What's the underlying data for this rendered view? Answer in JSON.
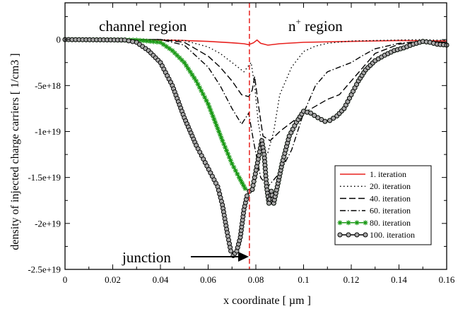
{
  "chart_data": {
    "type": "line",
    "xlabel": "x coordinate  [ µm ]",
    "ylabel": "density of injected charge carriers  [ 1/cm3 ]",
    "xlim": [
      0,
      0.16
    ],
    "ylim": [
      -2.5e+19,
      4e+18
    ],
    "x_ticks": [
      0,
      0.02,
      0.04,
      0.06,
      0.08,
      0.1,
      0.12,
      0.14,
      0.16
    ],
    "x_tick_labels": [
      "0",
      "0.02",
      "0.04",
      "0.06",
      "0.08",
      "0.1",
      "0.12",
      "0.14",
      "0.16"
    ],
    "y_ticks": [
      0,
      -5e+18,
      -1e+19,
      -1.5e+19,
      -2e+19,
      -2.5e+19
    ],
    "y_tick_labels": [
      "0",
      "-5e+18",
      "-1e+19",
      "-1.5e+19",
      "-2e+19",
      "-2.5e+19"
    ],
    "grid": false,
    "legend_position": "lower-right",
    "annotations": {
      "channel_region": "channel region",
      "n_region": "n",
      "n_region_sup": "+",
      "n_region_rest": " region",
      "junction": "junction",
      "junction_x": 0.0773
    },
    "series": [
      {
        "name": "1. iteration",
        "color": "#e8221f",
        "style": "solid",
        "marker": "none",
        "x": [
          0,
          0.02,
          0.04,
          0.05,
          0.06,
          0.07,
          0.075,
          0.077,
          0.079,
          0.0805,
          0.082,
          0.085,
          0.09,
          0.1,
          0.12,
          0.14,
          0.16
        ],
        "y": [
          0,
          0,
          -5e+16,
          -1e+17,
          -2e+17,
          -3.5e+17,
          -4.5e+17,
          -5.5e+17,
          -3.5e+17,
          -5e+16,
          -4e+17,
          -6e+17,
          -4.5e+17,
          -3e+17,
          -2e+17,
          -1e+17,
          -1.5e+17
        ]
      },
      {
        "name": "20. iteration",
        "color": "#000000",
        "style": "dotted",
        "marker": "none",
        "x": [
          0,
          0.04,
          0.05,
          0.06,
          0.065,
          0.07,
          0.075,
          0.078,
          0.0795,
          0.081,
          0.083,
          0.085,
          0.0875,
          0.09,
          0.095,
          0.1,
          0.105,
          0.11,
          0.12,
          0.13,
          0.14,
          0.15,
          0.16
        ],
        "y": [
          0,
          0,
          -1e+17,
          -8e+17,
          -1.5e+18,
          -2.5e+18,
          -3.5e+18,
          -2.5e+18,
          -5e+18,
          -9e+18,
          -1.2e+19,
          -1.23e+19,
          -1e+19,
          -6e+18,
          -3e+18,
          -1.3e+18,
          -7e+17,
          -4e+17,
          -1.5e+17,
          -1e+17,
          -5e+16,
          0,
          -1e+17
        ]
      },
      {
        "name": "40. iteration",
        "color": "#000000",
        "style": "dashed",
        "marker": "none",
        "x": [
          0,
          0.04,
          0.05,
          0.06,
          0.065,
          0.07,
          0.074,
          0.077,
          0.0785,
          0.0795,
          0.081,
          0.083,
          0.086,
          0.09,
          0.1,
          0.11,
          0.115,
          0.12,
          0.125,
          0.13,
          0.14,
          0.15,
          0.16
        ],
        "y": [
          0,
          0,
          -3e+17,
          -1.8e+18,
          -3e+18,
          -4.5e+18,
          -6e+18,
          -6.2e+18,
          -5.5e+18,
          -4e+18,
          -7e+18,
          -1.05e+19,
          -1.1e+19,
          -1e+19,
          -8e+18,
          -6.5e+18,
          -6e+18,
          -4.5e+18,
          -3e+18,
          -1.5e+18,
          -5e+17,
          -2e+17,
          -3e+17
        ]
      },
      {
        "name": "60. iteration",
        "color": "#000000",
        "style": "dashdot",
        "marker": "none",
        "x": [
          0,
          0.04,
          0.05,
          0.06,
          0.065,
          0.07,
          0.074,
          0.077,
          0.079,
          0.082,
          0.085,
          0.09,
          0.095,
          0.1,
          0.105,
          0.11,
          0.115,
          0.12,
          0.125,
          0.13,
          0.14,
          0.15,
          0.16
        ],
        "y": [
          0,
          0,
          -6e+17,
          -3e+18,
          -5e+18,
          -7.5e+18,
          -9.2e+18,
          -8e+18,
          -1.1e+19,
          -1.5e+19,
          -1.6e+19,
          -1.45e+19,
          -1.2e+19,
          -8e+18,
          -5e+18,
          -3.5e+18,
          -3e+18,
          -2.5e+18,
          -1.7e+18,
          -1e+18,
          -4e+17,
          -2e+17,
          -3e+17
        ]
      },
      {
        "name": "80. iteration",
        "color": "#1b9a17",
        "style": "solid",
        "marker": "star",
        "x": [
          0,
          0.03,
          0.04,
          0.045,
          0.05,
          0.055,
          0.06,
          0.063,
          0.066,
          0.07,
          0.073,
          0.0755,
          0.0773,
          0.0785,
          0.0795,
          0.081,
          0.0825,
          0.0835,
          0.0845,
          0.0855,
          0.0865,
          0.0875,
          0.089,
          0.091,
          0.094,
          0.097,
          0.1,
          0.103,
          0.106,
          0.109,
          0.111,
          0.114,
          0.117,
          0.12,
          0.123,
          0.126,
          0.13,
          0.134,
          0.138,
          0.142,
          0.146,
          0.15,
          0.153,
          0.156,
          0.16
        ],
        "y": [
          0,
          -5e+16,
          -3e+17,
          -1.2e+18,
          -2.5e+18,
          -4.5e+18,
          -7e+18,
          -9e+18,
          -1.1e+19,
          -1.35e+19,
          -1.5e+19,
          -1.62e+19,
          -1.65e+19,
          -1.63e+19,
          -1.5e+19,
          -1.3e+19,
          -1.1e+19,
          -1.25e+19,
          -1.6e+19,
          -1.78e+19,
          -1.65e+19,
          -1.78e+19,
          -1.6e+19,
          -1.35e+19,
          -1.05e+19,
          -9e+18,
          -7.8e+18,
          -8e+18,
          -8.5e+18,
          -8.9e+18,
          -8.8e+18,
          -8.3e+18,
          -7.5e+18,
          -6e+18,
          -4.5e+18,
          -3.3e+18,
          -2.3e+18,
          -1.7e+18,
          -1.2e+18,
          -9e+17,
          -5e+17,
          -2e+17,
          -3e+17,
          -5e+17,
          -6e+17
        ]
      },
      {
        "name": "100. iteration",
        "color": "#000000",
        "style": "solid",
        "marker": "circle",
        "x": [
          0,
          0.025,
          0.03,
          0.035,
          0.04,
          0.045,
          0.05,
          0.055,
          0.058,
          0.061,
          0.064,
          0.066,
          0.068,
          0.0695,
          0.0705,
          0.072,
          0.0735,
          0.075,
          0.0763,
          0.0773,
          0.0785,
          0.0795,
          0.081,
          0.0825,
          0.0835,
          0.0845,
          0.0855,
          0.0865,
          0.0875,
          0.089,
          0.091,
          0.094,
          0.097,
          0.1,
          0.103,
          0.106,
          0.109,
          0.111,
          0.114,
          0.117,
          0.12,
          0.123,
          0.126,
          0.13,
          0.134,
          0.138,
          0.142,
          0.146,
          0.15,
          0.153,
          0.156,
          0.16
        ],
        "y": [
          0,
          -5e+16,
          -3e+17,
          -1.2e+18,
          -2.5e+18,
          -5e+18,
          -8.5e+18,
          -1.15e+19,
          -1.3e+19,
          -1.45e+19,
          -1.6e+19,
          -1.8e+19,
          -2.1e+19,
          -2.3e+19,
          -2.35e+19,
          -2.3e+19,
          -2.15e+19,
          -1.85e+19,
          -1.7e+19,
          -1.65e+19,
          -1.63e+19,
          -1.5e+19,
          -1.3e+19,
          -1.1e+19,
          -1.25e+19,
          -1.6e+19,
          -1.78e+19,
          -1.65e+19,
          -1.78e+19,
          -1.6e+19,
          -1.35e+19,
          -1.05e+19,
          -9e+18,
          -7.8e+18,
          -8e+18,
          -8.5e+18,
          -8.9e+18,
          -8.8e+18,
          -8.3e+18,
          -7.5e+18,
          -6e+18,
          -4.5e+18,
          -3.3e+18,
          -2.3e+18,
          -1.7e+18,
          -1.2e+18,
          -9e+17,
          -5e+17,
          -2e+17,
          -3e+17,
          -5e+17,
          -6e+17
        ]
      }
    ]
  }
}
